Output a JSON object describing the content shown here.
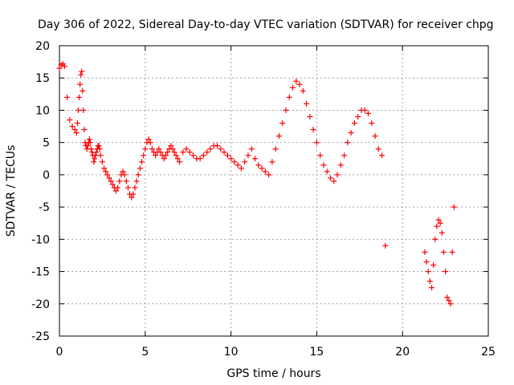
{
  "chart_data": {
    "type": "scatter",
    "title": "Day 306 of 2022, Sidereal Day-to-day VTEC variation (SDTVAR) for receiver chpg",
    "xlabel": "GPS time / hours",
    "ylabel": "SDTVAR / TECUs",
    "xlim": [
      0,
      25
    ],
    "ylim": [
      -25,
      20
    ],
    "xticks": [
      "0",
      "5",
      "10",
      "15",
      "20",
      "25"
    ],
    "yticks": [
      "20",
      "15",
      "10",
      "5",
      "0",
      "-5",
      "-10",
      "-15",
      "-20",
      "-25"
    ],
    "grid": true,
    "marker": "+",
    "color": "#ff0000",
    "series": [
      {
        "name": "SDTVAR",
        "x": [
          0.0,
          0.1,
          0.2,
          0.3,
          0.45,
          0.6,
          0.75,
          0.9,
          1.0,
          1.05,
          1.1,
          1.15,
          1.2,
          1.25,
          1.3,
          1.35,
          1.4,
          1.45,
          1.5,
          1.55,
          1.6,
          1.65,
          1.7,
          1.75,
          1.8,
          1.85,
          1.9,
          1.95,
          2.0,
          2.05,
          2.1,
          2.15,
          2.2,
          2.25,
          2.3,
          2.35,
          2.4,
          2.5,
          2.6,
          2.7,
          2.8,
          2.9,
          3.0,
          3.1,
          3.2,
          3.3,
          3.4,
          3.5,
          3.6,
          3.7,
          3.8,
          3.9,
          4.0,
          4.1,
          4.2,
          4.3,
          4.4,
          4.5,
          4.6,
          4.7,
          4.8,
          4.9,
          5.0,
          5.1,
          5.2,
          5.3,
          5.4,
          5.5,
          5.6,
          5.7,
          5.8,
          5.9,
          6.0,
          6.1,
          6.2,
          6.3,
          6.4,
          6.5,
          6.6,
          6.7,
          6.8,
          6.9,
          7.0,
          7.2,
          7.4,
          7.6,
          7.8,
          8.0,
          8.2,
          8.4,
          8.6,
          8.8,
          9.0,
          9.2,
          9.4,
          9.6,
          9.8,
          10.0,
          10.2,
          10.4,
          10.6,
          10.8,
          11.0,
          11.2,
          11.4,
          11.6,
          11.8,
          12.0,
          12.2,
          12.4,
          12.6,
          12.8,
          13.0,
          13.2,
          13.4,
          13.6,
          13.8,
          14.0,
          14.2,
          14.4,
          14.6,
          14.8,
          15.0,
          15.2,
          15.4,
          15.6,
          15.8,
          16.0,
          16.2,
          16.4,
          16.6,
          16.8,
          17.0,
          17.2,
          17.4,
          17.6,
          17.8,
          18.0,
          18.2,
          18.4,
          18.6,
          18.8,
          19.0,
          21.3,
          21.4,
          21.5,
          21.6,
          21.7,
          21.8,
          21.9,
          22.0,
          22.1,
          22.2,
          22.3,
          22.4,
          22.5,
          22.6,
          22.7,
          22.8,
          22.9,
          23.0
        ],
        "y": [
          16.5,
          17.0,
          17.2,
          16.8,
          12.0,
          8.5,
          7.5,
          7.0,
          6.5,
          8.0,
          10.0,
          12.0,
          14.0,
          15.5,
          16.0,
          13.0,
          10.0,
          7.0,
          5.0,
          4.5,
          4.0,
          4.5,
          5.0,
          5.5,
          5.0,
          4.0,
          3.5,
          3.0,
          2.0,
          2.5,
          3.0,
          3.5,
          4.0,
          4.5,
          4.5,
          4.0,
          3.0,
          2.0,
          1.0,
          0.5,
          0.0,
          -0.5,
          -1.0,
          -1.5,
          -2.0,
          -2.5,
          -2.0,
          -1.0,
          0.0,
          0.5,
          0.0,
          -1.0,
          -2.0,
          -3.0,
          -3.5,
          -3.0,
          -2.0,
          -1.0,
          0.0,
          1.0,
          2.0,
          3.0,
          4.0,
          5.0,
          5.5,
          5.0,
          4.0,
          3.5,
          3.0,
          3.5,
          4.0,
          3.5,
          3.0,
          2.5,
          3.0,
          3.5,
          4.0,
          4.5,
          4.0,
          3.5,
          3.0,
          2.5,
          2.0,
          3.5,
          4.0,
          3.5,
          3.0,
          2.5,
          2.5,
          3.0,
          3.5,
          4.0,
          4.5,
          4.5,
          4.0,
          3.5,
          3.0,
          2.5,
          2.0,
          1.5,
          1.0,
          2.0,
          3.0,
          4.0,
          2.5,
          1.5,
          1.0,
          0.5,
          0.0,
          2.0,
          4.0,
          6.0,
          8.0,
          10.0,
          12.0,
          13.5,
          14.5,
          14.0,
          13.0,
          11.0,
          9.0,
          7.0,
          5.0,
          3.0,
          1.5,
          0.5,
          -0.5,
          -1.0,
          0.0,
          1.5,
          3.0,
          5.0,
          6.5,
          8.0,
          9.0,
          10.0,
          10.0,
          9.5,
          8.0,
          6.0,
          4.0,
          3.0,
          -11.0,
          -12.0,
          -13.5,
          -15.0,
          -16.5,
          -17.5,
          -14.0,
          -10.0,
          -8.0,
          -7.0,
          -7.5,
          -9.0,
          -12.0,
          -15.0,
          -19.0,
          -19.5,
          -20.0,
          -12.0,
          -5.0
        ]
      }
    ]
  }
}
